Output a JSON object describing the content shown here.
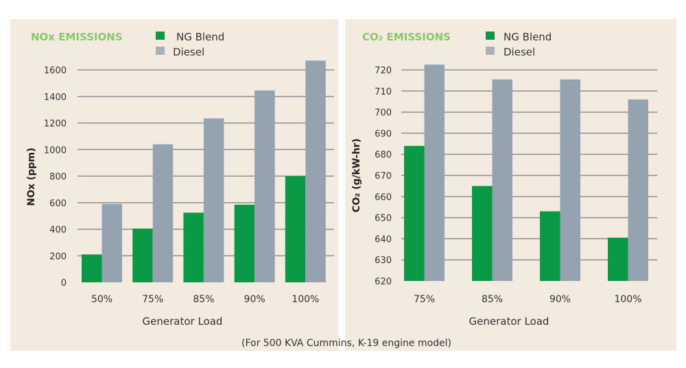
{
  "caption": "(For 500 KVA Cummins, K-19 engine model)",
  "colors": {
    "ng_blend": "#0a9a45",
    "diesel": "#94a3af",
    "title": "#8cc56a",
    "grid": "#8a8f94",
    "background": "#f3eae0"
  },
  "chart_data": [
    {
      "type": "bar",
      "title": "NOx EMISSIONS",
      "xlabel": "Generator Load",
      "ylabel": "NOx (ppm)",
      "categories": [
        "50%",
        "75%",
        "85%",
        "90%",
        "100%"
      ],
      "series": [
        {
          "name": "NG Blend",
          "values": [
            210,
            405,
            525,
            585,
            800
          ]
        },
        {
          "name": "Diesel",
          "values": [
            590,
            1040,
            1235,
            1445,
            1670
          ]
        }
      ],
      "yticks": [
        0,
        200,
        400,
        600,
        800,
        1000,
        1200,
        1400,
        1600
      ],
      "ylim": [
        0,
        1600
      ],
      "grid": true,
      "legend": "top"
    },
    {
      "type": "bar",
      "title": "CO₂ EMISSIONS",
      "xlabel": "Generator Load",
      "ylabel": "CO₂ (g/kW-hr)",
      "categories": [
        "75%",
        "85%",
        "90%",
        "100%"
      ],
      "series": [
        {
          "name": "NG Blend",
          "values": [
            684,
            665,
            653,
            640.5
          ]
        },
        {
          "name": "Diesel",
          "values": [
            722.5,
            715.5,
            715.5,
            706
          ]
        }
      ],
      "yticks": [
        620,
        630,
        640,
        650,
        660,
        670,
        680,
        690,
        700,
        710,
        720
      ],
      "ylim": [
        620,
        720
      ],
      "grid": true,
      "legend": "top"
    }
  ]
}
